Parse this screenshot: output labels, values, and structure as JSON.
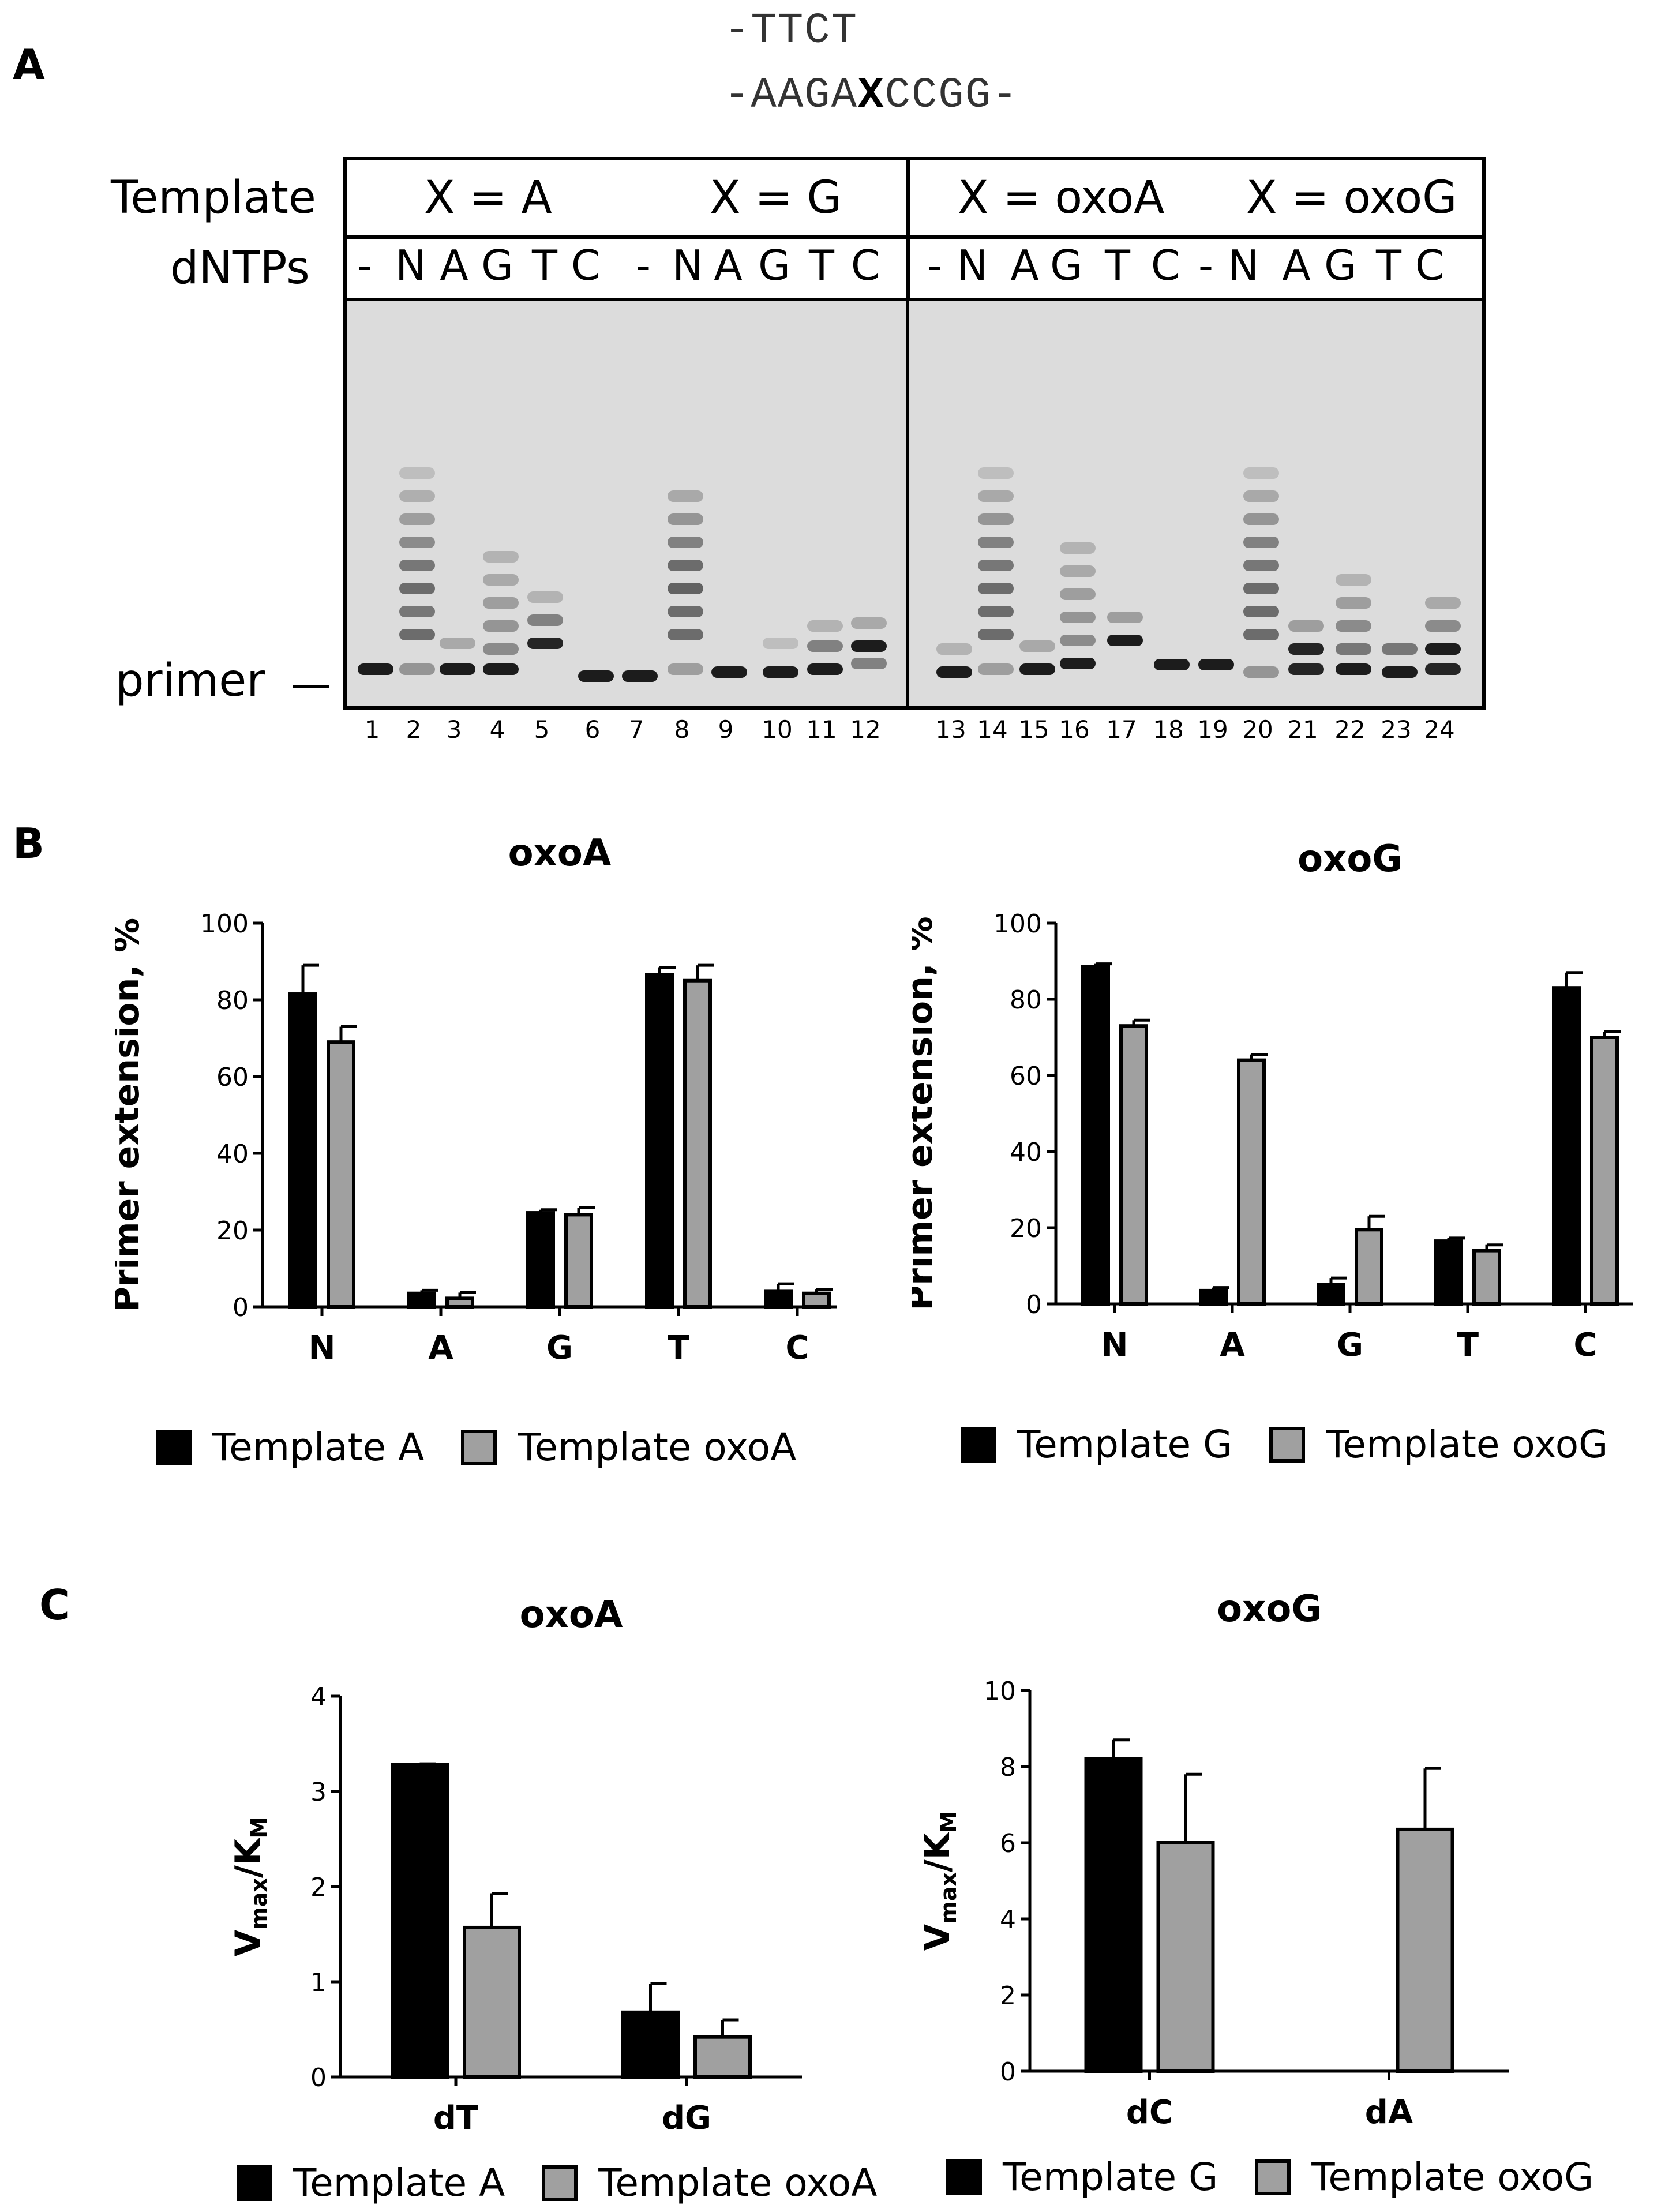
{
  "panels": {
    "a": "A",
    "b": "B",
    "c": "C"
  },
  "sequence": {
    "line1": "-TTCT",
    "line2_pre": "-AAGA",
    "line2_x": "X",
    "line2_post": "CCGG-"
  },
  "gel": {
    "template_label": "Template",
    "dntps_label": "dNTPs",
    "groups": [
      "X = A",
      "X = G",
      "X = oxoA",
      "X = oxoG"
    ],
    "lane_symbols": [
      "-",
      "N",
      "A",
      "G",
      "T",
      "C",
      "-",
      "N",
      "A",
      "G",
      "T",
      "C",
      "-",
      "N",
      "A",
      "G",
      "T",
      "C",
      "-",
      "N",
      "A",
      "G",
      "T",
      "C"
    ],
    "lane_numbers": [
      "1",
      "2",
      "3",
      "4",
      "5",
      "6",
      "7",
      "8",
      "9",
      "10",
      "11",
      "12",
      "13",
      "14",
      "15",
      "16",
      "17",
      "18",
      "19",
      "20",
      "21",
      "22",
      "23",
      "24"
    ],
    "primer_label": "primer",
    "colors": {
      "background": "#dcdcdc",
      "band": "#111111"
    }
  },
  "legends": {
    "b_left": [
      "Template A",
      "Template oxoA"
    ],
    "b_right": [
      "Template G",
      "Template oxoG"
    ],
    "c_left": [
      "Template A",
      "Template oxoA"
    ],
    "c_right": [
      "Template G",
      "Template oxoG"
    ]
  },
  "colors": {
    "series_a": "#000000",
    "series_b": "#a0a0a0"
  },
  "chart_data": [
    {
      "type": "bar",
      "title": "oxoA",
      "ylabel": "Primer extension, %",
      "categories": [
        "N",
        "A",
        "G",
        "T",
        "C"
      ],
      "ylim": [
        0,
        100
      ],
      "yticks": [
        0,
        20,
        40,
        60,
        80,
        100
      ],
      "series": [
        {
          "name": "Template A",
          "values": [
            81.5,
            3.5,
            24.5,
            86.5,
            4
          ],
          "errors": [
            7.5,
            0.8,
            0.8,
            2,
            2
          ]
        },
        {
          "name": "Template oxoA",
          "values": [
            69,
            2.2,
            24,
            85,
            3.5
          ],
          "errors": [
            4,
            1.5,
            1.8,
            4,
            1
          ]
        }
      ]
    },
    {
      "type": "bar",
      "title": "oxoG",
      "ylabel": "Primer extension, %",
      "categories": [
        "N",
        "A",
        "G",
        "T",
        "C"
      ],
      "ylim": [
        0,
        100
      ],
      "yticks": [
        0,
        20,
        40,
        60,
        80,
        100
      ],
      "series": [
        {
          "name": "Template G",
          "values": [
            88.5,
            3.5,
            5,
            16.5,
            83
          ],
          "errors": [
            0.8,
            0.8,
            1.8,
            0.8,
            4
          ]
        },
        {
          "name": "Template oxoG",
          "values": [
            73,
            64,
            19.5,
            14,
            70
          ],
          "errors": [
            1.5,
            1.5,
            3.5,
            1.5,
            1.5
          ]
        }
      ]
    },
    {
      "type": "bar",
      "title": "oxoA",
      "ylabel": "Vmax/KM",
      "categories": [
        "dT",
        "dG"
      ],
      "ylim": [
        0,
        4
      ],
      "yticks": [
        0,
        1,
        2,
        3,
        4
      ],
      "series": [
        {
          "name": "Template A",
          "values": [
            3.28,
            0.68
          ],
          "errors": [
            0.01,
            0.3
          ]
        },
        {
          "name": "Template oxoA",
          "values": [
            1.57,
            0.42
          ],
          "errors": [
            0.36,
            0.18
          ]
        }
      ]
    },
    {
      "type": "bar",
      "title": "oxoG",
      "ylabel": "Vmax/KM",
      "categories": [
        "dC",
        "dA"
      ],
      "ylim": [
        0,
        10
      ],
      "yticks": [
        0,
        2,
        4,
        6,
        8,
        10
      ],
      "series": [
        {
          "name": "Template G",
          "values": [
            8.2,
            0
          ],
          "errors": [
            0.5,
            0
          ]
        },
        {
          "name": "Template oxoG",
          "values": [
            6.0,
            6.35
          ],
          "errors": [
            1.8,
            1.6
          ]
        }
      ]
    }
  ]
}
